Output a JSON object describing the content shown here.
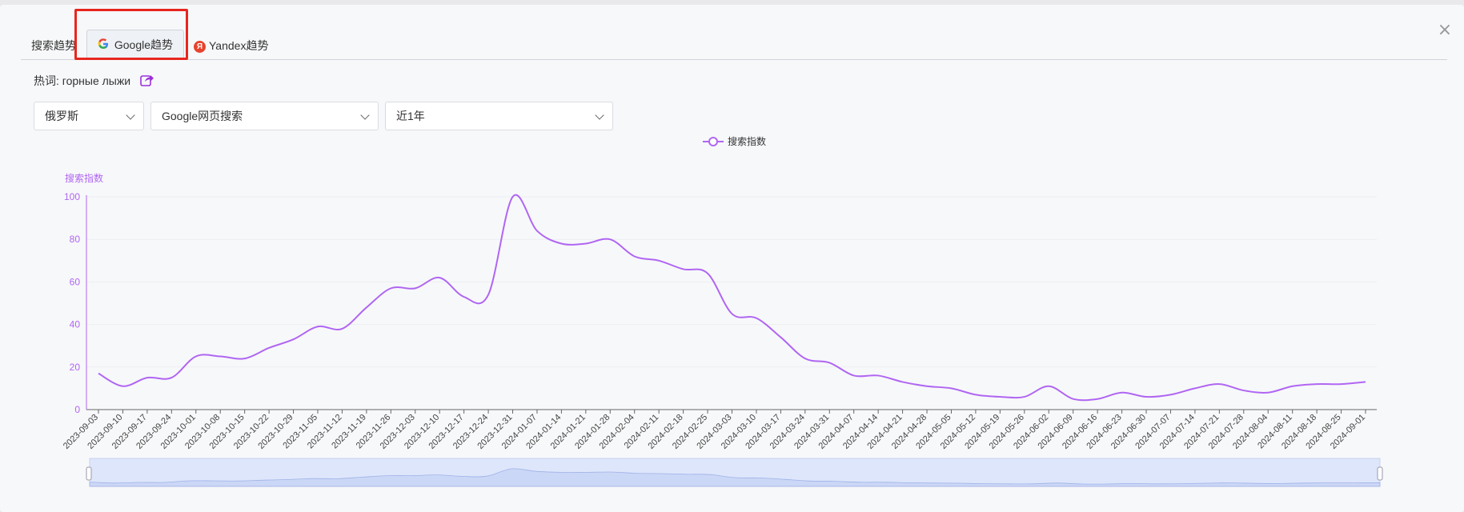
{
  "tabs": [
    {
      "label": "搜索趋势"
    },
    {
      "label": "Google趋势"
    },
    {
      "label": "Yandex趋势"
    }
  ],
  "close_icon": "×",
  "keyword": {
    "prefix": "热词: ",
    "value": "горные лыжи"
  },
  "filters": {
    "country": "俄罗斯",
    "search_type": "Google网页搜索",
    "period": "近1年"
  },
  "colors": {
    "series": "#b066f2",
    "highlight": "#e8261f",
    "zoom_fill": "#d7e1fb"
  },
  "chart_data": {
    "type": "line",
    "legend": [
      "搜索指数"
    ],
    "legend_position": "top-center",
    "ylabel": "搜索指数",
    "ylim": [
      0,
      100
    ],
    "yticks": [
      0,
      20,
      40,
      60,
      80,
      100
    ],
    "grid": true,
    "x": [
      "2023-09-03",
      "2023-09-10",
      "2023-09-17",
      "2023-09-24",
      "2023-10-01",
      "2023-10-08",
      "2023-10-15",
      "2023-10-22",
      "2023-10-29",
      "2023-11-05",
      "2023-11-12",
      "2023-11-19",
      "2023-11-26",
      "2023-12-03",
      "2023-12-10",
      "2023-12-17",
      "2023-12-24",
      "2023-12-31",
      "2024-01-07",
      "2024-01-14",
      "2024-01-21",
      "2024-01-28",
      "2024-02-04",
      "2024-02-11",
      "2024-02-18",
      "2024-02-25",
      "2024-03-03",
      "2024-03-10",
      "2024-03-17",
      "2024-03-24",
      "2024-03-31",
      "2024-04-07",
      "2024-04-14",
      "2024-04-21",
      "2024-04-28",
      "2024-05-05",
      "2024-05-12",
      "2024-05-19",
      "2024-05-26",
      "2024-06-02",
      "2024-06-09",
      "2024-06-16",
      "2024-06-23",
      "2024-06-30",
      "2024-07-07",
      "2024-07-14",
      "2024-07-21",
      "2024-07-28",
      "2024-08-04",
      "2024-08-11",
      "2024-08-18",
      "2024-08-25",
      "2024-09-01"
    ],
    "series": [
      {
        "name": "搜索指数",
        "values": [
          17,
          11,
          15,
          15,
          25,
          25,
          24,
          29,
          33,
          39,
          38,
          48,
          57,
          57,
          62,
          53,
          54,
          100,
          84,
          78,
          78,
          80,
          72,
          70,
          66,
          64,
          45,
          43,
          34,
          24,
          22,
          16,
          16,
          13,
          11,
          10,
          7,
          6,
          6,
          11,
          5,
          5,
          8,
          6,
          7,
          10,
          12,
          9,
          8,
          11,
          12,
          12,
          13
        ]
      }
    ]
  }
}
